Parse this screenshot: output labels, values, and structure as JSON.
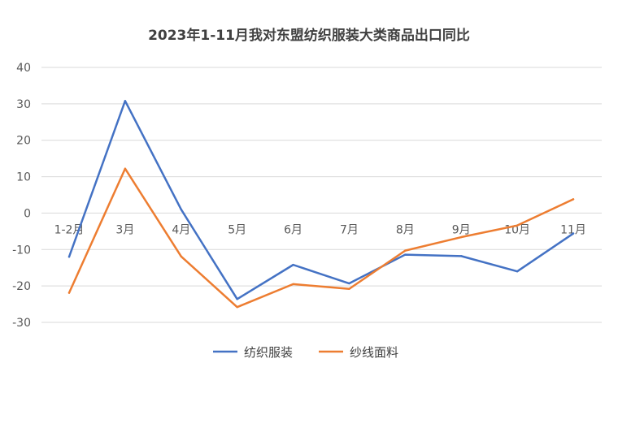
{
  "chart_data": {
    "type": "line",
    "title": "2023年1-11月我对东盟纺织服装大类商品出口同比",
    "xlabel": "",
    "ylabel": "",
    "categories": [
      "1-2月",
      "3月",
      "4月",
      "5月",
      "6月",
      "7月",
      "8月",
      "9月",
      "10月",
      "11月"
    ],
    "ylim": [
      -30,
      40
    ],
    "yticks": [
      40,
      30,
      20,
      10,
      0,
      -10,
      -20,
      -30
    ],
    "grid": true,
    "legend": "bottom",
    "series": [
      {
        "name": "纺织服装",
        "color": "#4472C4",
        "values": [
          -12,
          30.8,
          1,
          -23.6,
          -14.2,
          -19.3,
          -11.4,
          -11.8,
          -16,
          -5.6
        ]
      },
      {
        "name": "纱线面料",
        "color": "#ED7D31",
        "values": [
          -21.9,
          12.2,
          -11.9,
          -25.8,
          -19.5,
          -20.8,
          -10.3,
          -6.6,
          -3.4,
          3.8
        ]
      }
    ]
  }
}
